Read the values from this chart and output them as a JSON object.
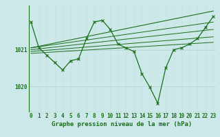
{
  "bg_color": "#cce8e8",
  "grid_color_v": "#c8e0e0",
  "grid_color_h": "#b8d8d8",
  "line_color": "#1a6e1a",
  "xlabel": "Graphe pression niveau de la mer (hPa)",
  "xlabel_fontsize": 6.5,
  "tick_fontsize": 5.5,
  "ylabel_ticks": [
    1020,
    1021
  ],
  "ylim": [
    1019.3,
    1022.2
  ],
  "xlim": [
    -0.3,
    23.3
  ],
  "main_series": [
    1021.75,
    1021.05,
    1020.85,
    1020.65,
    1020.45,
    1020.7,
    1020.75,
    1021.3,
    1021.75,
    1021.8,
    1021.55,
    1021.15,
    1021.05,
    1020.95,
    1020.35,
    1019.98,
    1019.55,
    1020.5,
    1021.0,
    1021.05,
    1021.15,
    1021.3,
    1021.6,
    1021.9
  ],
  "trend_line": [
    [
      0,
      23
    ],
    [
      1021.05,
      1022.05
    ]
  ],
  "extra_lines": [
    [
      [
        0,
        23
      ],
      [
        1021.05,
        1021.75
      ]
    ],
    [
      [
        0,
        23
      ],
      [
        1021.0,
        1021.55
      ]
    ],
    [
      [
        0,
        23
      ],
      [
        1020.95,
        1021.35
      ]
    ],
    [
      [
        0,
        23
      ],
      [
        1020.9,
        1021.2
      ]
    ]
  ]
}
